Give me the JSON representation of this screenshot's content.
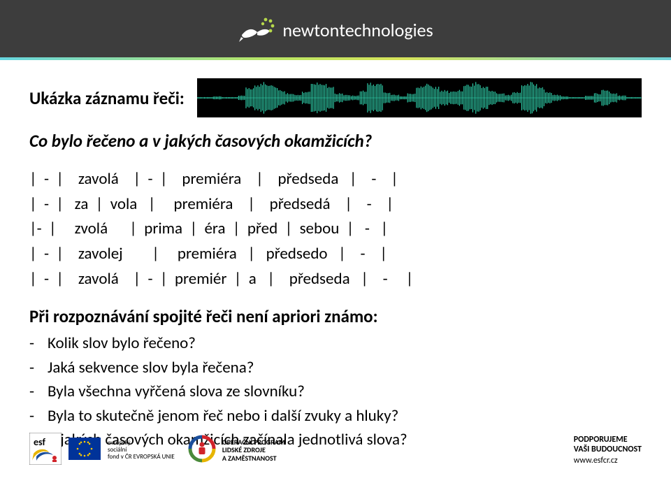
{
  "header": {
    "brand_part1": "newton",
    "brand_part2": "technologies",
    "bg_color": "#3d3d3d",
    "accent_gradient": [
      "#66d6e0",
      "#b8e564",
      "#d7e45a",
      "#6ed1d8"
    ],
    "bird_color": "#ffffff",
    "spark_color": "#b7d94c"
  },
  "content": {
    "section_title": "Ukázka záznamu řeči:",
    "waveform": {
      "bg": "#000000",
      "stroke": "#33e0b8",
      "envelope": [
        1,
        1,
        2,
        1,
        1,
        3,
        14,
        18,
        20,
        16,
        10,
        6,
        4,
        8,
        22,
        20,
        14,
        6,
        4,
        3,
        10,
        20,
        18,
        8,
        4,
        2,
        6,
        16,
        18,
        14,
        10,
        8,
        10,
        18,
        20,
        16,
        10,
        6,
        4,
        8,
        18,
        20,
        14,
        8,
        4,
        2,
        1,
        1,
        3,
        6,
        10,
        6,
        3,
        1,
        1
      ]
    },
    "question": "Co bylo řečeno a v jakých časových okamžicích?",
    "table_rows": [
      "|  -  |    zavolá    |  -  |    premiéra    |    předseda   |    -    |",
      "|  -  |   za  |  vola   |     premiéra    |    předsedá    |    -    |",
      "|-  |     zvolá      |  prima  |  éra  |  před  |  sebou  |   -   |",
      "|  -  |    zavolej        |     premiéra   |   předsedo   |    -    |",
      "|  -  |    zavolá    |  -  |  premiér  |  a   |    předseda   |    -     |"
    ],
    "subhead": "Při rozpoznávání spojité řeči není apriori známo:",
    "bullets": [
      "Kolik slov bylo řečeno?",
      "Jaká sekvence slov byla řečena?",
      "Byla všechna vyřčená slova ze slovníku?",
      "Byla to skutečně jenom řeč nebo i další zvuky a hluky?",
      "V jakých časových okamžicích začínala jednotlivá slova?"
    ]
  },
  "footer": {
    "esf_lines": [
      "evropský",
      "sociální",
      "fond v ČR   EVROPSKÁ UNIE"
    ],
    "opz_lines": [
      "OPERAČNÍ PROGRAM",
      "LIDSKÉ ZDROJE",
      "A ZAMĚSTNANOST"
    ],
    "support_title": "PODPORUJEME",
    "support_sub": "VAŠI BUDOUCNOST",
    "support_url": "www.esfcr.cz",
    "eu_blue": "#003399",
    "eu_gold": "#ffcc00",
    "opz_red": "#d1232a",
    "opz_blue": "#1b4f9c",
    "opz_green": "#4a8a3a",
    "opz_yellow": "#e7b500"
  }
}
